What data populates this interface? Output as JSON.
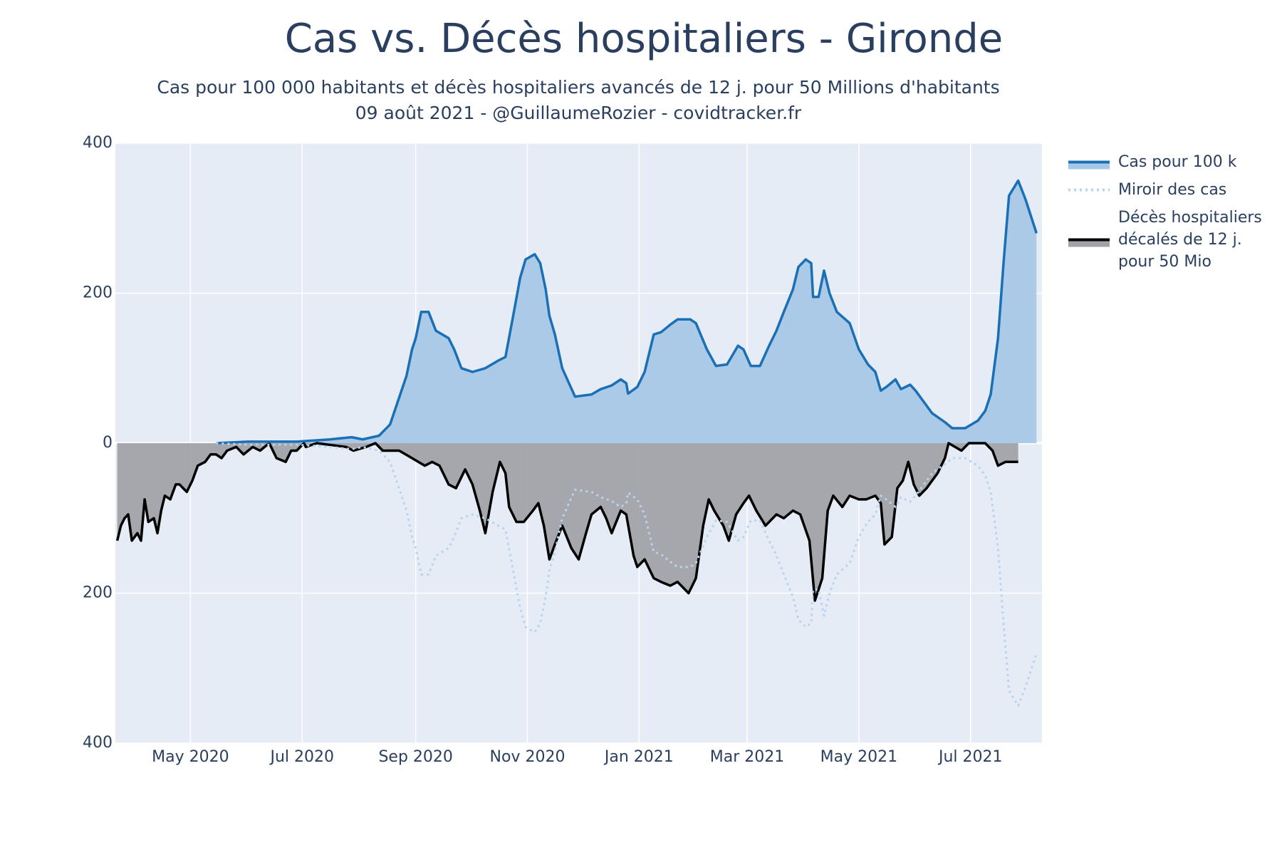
{
  "chart_data": {
    "type": "area",
    "title": "Cas vs. Décès hospitaliers - Gironde",
    "subtitle": [
      "Cas pour 100 000 habitants et décès hospitaliers avancés de 12 j. pour 50 Millions d'habitants",
      "09 août 2021 - @GuillaumeRozier - covidtracker.fr"
    ],
    "xlim": [
      20,
      526
    ],
    "xticks": [
      {
        "value": 61,
        "label": "May 2020"
      },
      {
        "value": 122,
        "label": "Jul 2020"
      },
      {
        "value": 184,
        "label": "Sep 2020"
      },
      {
        "value": 245,
        "label": "Nov 2020"
      },
      {
        "value": 306,
        "label": "Jan 2021"
      },
      {
        "value": 365,
        "label": "Mar 2021"
      },
      {
        "value": 426,
        "label": "May 2021"
      },
      {
        "value": 487,
        "label": "Jul 2021"
      }
    ],
    "ylim": [
      -400,
      400
    ],
    "yticks": [
      400,
      200,
      0,
      {
        "value": -200,
        "label": "200"
      },
      {
        "value": -400,
        "label": "400"
      }
    ],
    "grid": true,
    "legend": "right",
    "series": [
      {
        "name": "Cas pour 100 k",
        "color": "#1a6fb5",
        "fill": "#a6c8e6",
        "style": "solid",
        "x": [
          75,
          92,
          119,
          137,
          149,
          155,
          164,
          170,
          179,
          182,
          184,
          187,
          191,
          195,
          202,
          205,
          209,
          215,
          222,
          229,
          233,
          238,
          241,
          244,
          249,
          252,
          255,
          257,
          260,
          264,
          271,
          280,
          285,
          291,
          296,
          299,
          300,
          305,
          309,
          314,
          318,
          323,
          327,
          334,
          337,
          343,
          348,
          354,
          360,
          363,
          367,
          372,
          377,
          381,
          385,
          390,
          393,
          397,
          400,
          401,
          404,
          407,
          410,
          414,
          421,
          426,
          431,
          435,
          438,
          441,
          446,
          449,
          454,
          457,
          460,
          466,
          473,
          477,
          484,
          491,
          495,
          498,
          502,
          505,
          508,
          513,
          517,
          523
        ],
        "values": [
          0,
          2,
          2,
          5,
          8,
          5,
          10,
          25,
          90,
          125,
          140,
          175,
          175,
          150,
          140,
          125,
          100,
          95,
          100,
          110,
          115,
          180,
          220,
          245,
          252,
          240,
          205,
          170,
          145,
          100,
          62,
          65,
          72,
          77,
          85,
          80,
          66,
          75,
          95,
          145,
          148,
          158,
          165,
          165,
          160,
          125,
          103,
          105,
          130,
          125,
          103,
          103,
          130,
          150,
          175,
          205,
          235,
          245,
          240,
          195,
          195,
          230,
          200,
          175,
          160,
          125,
          105,
          95,
          70,
          75,
          85,
          72,
          78,
          70,
          60,
          40,
          28,
          20,
          20,
          30,
          43,
          65,
          140,
          240,
          330,
          350,
          325,
          280
        ]
      },
      {
        "name": "Miroir des cas",
        "color": "#b8d4ec",
        "style": "dot",
        "x": [
          75,
          92,
          119,
          137,
          149,
          155,
          164,
          170,
          179,
          182,
          184,
          187,
          191,
          195,
          202,
          205,
          209,
          215,
          222,
          229,
          233,
          238,
          241,
          244,
          249,
          252,
          255,
          257,
          260,
          264,
          271,
          280,
          285,
          291,
          296,
          299,
          300,
          305,
          309,
          314,
          318,
          323,
          327,
          334,
          337,
          343,
          348,
          354,
          360,
          363,
          367,
          372,
          377,
          381,
          385,
          390,
          393,
          397,
          400,
          401,
          404,
          407,
          410,
          414,
          421,
          426,
          431,
          435,
          438,
          441,
          446,
          449,
          454,
          457,
          460,
          466,
          473,
          477,
          484,
          491,
          495,
          498,
          502,
          505,
          508,
          513,
          517,
          523
        ],
        "values": [
          0,
          -2,
          -2,
          -5,
          -8,
          -5,
          -10,
          -25,
          -90,
          -125,
          -140,
          -175,
          -175,
          -150,
          -140,
          -125,
          -100,
          -95,
          -100,
          -110,
          -115,
          -180,
          -220,
          -245,
          -252,
          -240,
          -205,
          -170,
          -145,
          -100,
          -62,
          -65,
          -72,
          -77,
          -85,
          -80,
          -66,
          -75,
          -95,
          -145,
          -148,
          -158,
          -165,
          -165,
          -160,
          -125,
          -103,
          -105,
          -130,
          -125,
          -103,
          -103,
          -130,
          -150,
          -175,
          -205,
          -235,
          -245,
          -240,
          -195,
          -195,
          -230,
          -200,
          -175,
          -160,
          -125,
          -105,
          -95,
          -70,
          -75,
          -85,
          -72,
          -78,
          -70,
          -60,
          -40,
          -28,
          -20,
          -20,
          -30,
          -43,
          -65,
          -140,
          -240,
          -330,
          -350,
          -325,
          -280
        ]
      },
      {
        "name": "Décès hospitaliers\ndécalés de 12 j.\npour 50 Mio",
        "color": "#000000",
        "fill": "#a1a3a9",
        "style": "solid",
        "x": [
          21,
          23,
          25,
          27,
          29,
          32,
          34,
          36,
          38,
          41,
          43,
          45,
          47,
          50,
          53,
          55,
          59,
          62,
          65,
          69,
          72,
          75,
          78,
          81,
          86,
          90,
          95,
          99,
          104,
          108,
          113,
          116,
          119,
          123,
          124,
          130,
          146,
          150,
          157,
          162,
          166,
          175,
          182,
          189,
          193,
          197,
          202,
          206,
          211,
          215,
          219,
          222,
          226,
          230,
          233,
          235,
          239,
          243,
          248,
          251,
          254,
          257,
          260,
          264,
          269,
          273,
          277,
          280,
          285,
          288,
          291,
          296,
          299,
          303,
          305,
          309,
          314,
          318,
          323,
          327,
          333,
          337,
          341,
          344,
          347,
          352,
          355,
          359,
          363,
          366,
          370,
          375,
          381,
          385,
          390,
          394,
          399,
          402,
          406,
          409,
          412,
          417,
          421,
          426,
          430,
          435,
          438,
          440,
          444,
          447,
          450,
          453,
          456,
          459,
          463,
          466,
          469,
          473,
          475,
          482,
          486,
          495,
          499,
          502,
          506,
          509,
          513
        ],
        "values": [
          -130,
          -110,
          -100,
          -95,
          -130,
          -120,
          -130,
          -75,
          -105,
          -100,
          -120,
          -90,
          -70,
          -75,
          -55,
          -55,
          -65,
          -50,
          -30,
          -25,
          -15,
          -15,
          -20,
          -10,
          -5,
          -15,
          -5,
          -10,
          0,
          -20,
          -25,
          -10,
          -10,
          0,
          -5,
          0,
          -5,
          -10,
          -5,
          0,
          -10,
          -10,
          -20,
          -30,
          -25,
          -30,
          -55,
          -60,
          -35,
          -55,
          -90,
          -120,
          -65,
          -25,
          -40,
          -85,
          -105,
          -105,
          -90,
          -80,
          -110,
          -155,
          -135,
          -110,
          -140,
          -155,
          -120,
          -95,
          -85,
          -100,
          -120,
          -90,
          -95,
          -150,
          -165,
          -155,
          -180,
          -185,
          -190,
          -185,
          -200,
          -180,
          -110,
          -75,
          -90,
          -110,
          -130,
          -95,
          -80,
          -70,
          -90,
          -110,
          -95,
          -100,
          -90,
          -95,
          -130,
          -210,
          -180,
          -90,
          -70,
          -85,
          -70,
          -75,
          -75,
          -70,
          -80,
          -135,
          -125,
          -60,
          -50,
          -25,
          -55,
          -70,
          -60,
          -50,
          -40,
          -20,
          0,
          -10,
          0,
          0,
          -10,
          -30,
          -25,
          -25,
          -25
        ]
      }
    ]
  }
}
